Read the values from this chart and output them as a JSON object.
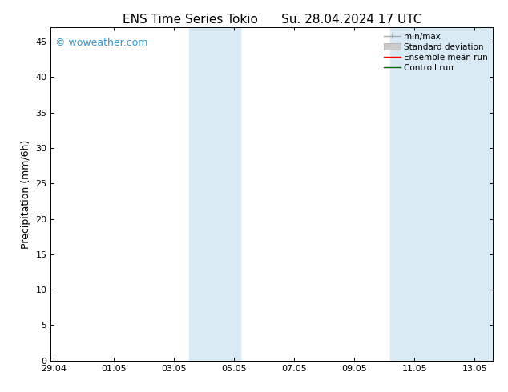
{
  "title": "ENS Time Series Tokio      Su. 28.04.2024 17 UTC",
  "ylabel": "Precipitation (mm/6h)",
  "xlabel": "",
  "ylim": [
    0,
    47
  ],
  "yticks": [
    0,
    5,
    10,
    15,
    20,
    25,
    30,
    35,
    40,
    45
  ],
  "xtick_labels": [
    "29.04",
    "01.05",
    "03.05",
    "05.05",
    "07.05",
    "09.05",
    "11.05",
    "13.05"
  ],
  "xtick_positions": [
    0,
    2,
    4,
    6,
    8,
    10,
    12,
    14
  ],
  "xlim": [
    -0.1,
    14.6
  ],
  "shaded_regions": [
    {
      "x_start": 4.5,
      "x_end": 6.2
    },
    {
      "x_start": 11.2,
      "x_end": 14.6
    }
  ],
  "shaded_color": "#daeaf5",
  "background_color": "#ffffff",
  "plot_bg_color": "#ffffff",
  "watermark_text": "© woweather.com",
  "watermark_color": "#3399cc",
  "legend_items": [
    {
      "label": "min/max",
      "color": "#aaaaaa",
      "lw": 1.0,
      "style": "line_with_cap"
    },
    {
      "label": "Standard deviation",
      "color": "#cccccc",
      "lw": 5,
      "style": "band"
    },
    {
      "label": "Ensemble mean run",
      "color": "#ff0000",
      "lw": 1.0,
      "style": "line"
    },
    {
      "label": "Controll run",
      "color": "#006600",
      "lw": 1.0,
      "style": "line"
    }
  ],
  "spine_color": "#000000",
  "tick_color": "#000000",
  "title_fontsize": 11,
  "label_fontsize": 9,
  "tick_fontsize": 8,
  "legend_fontsize": 7.5,
  "watermark_fontsize": 9
}
